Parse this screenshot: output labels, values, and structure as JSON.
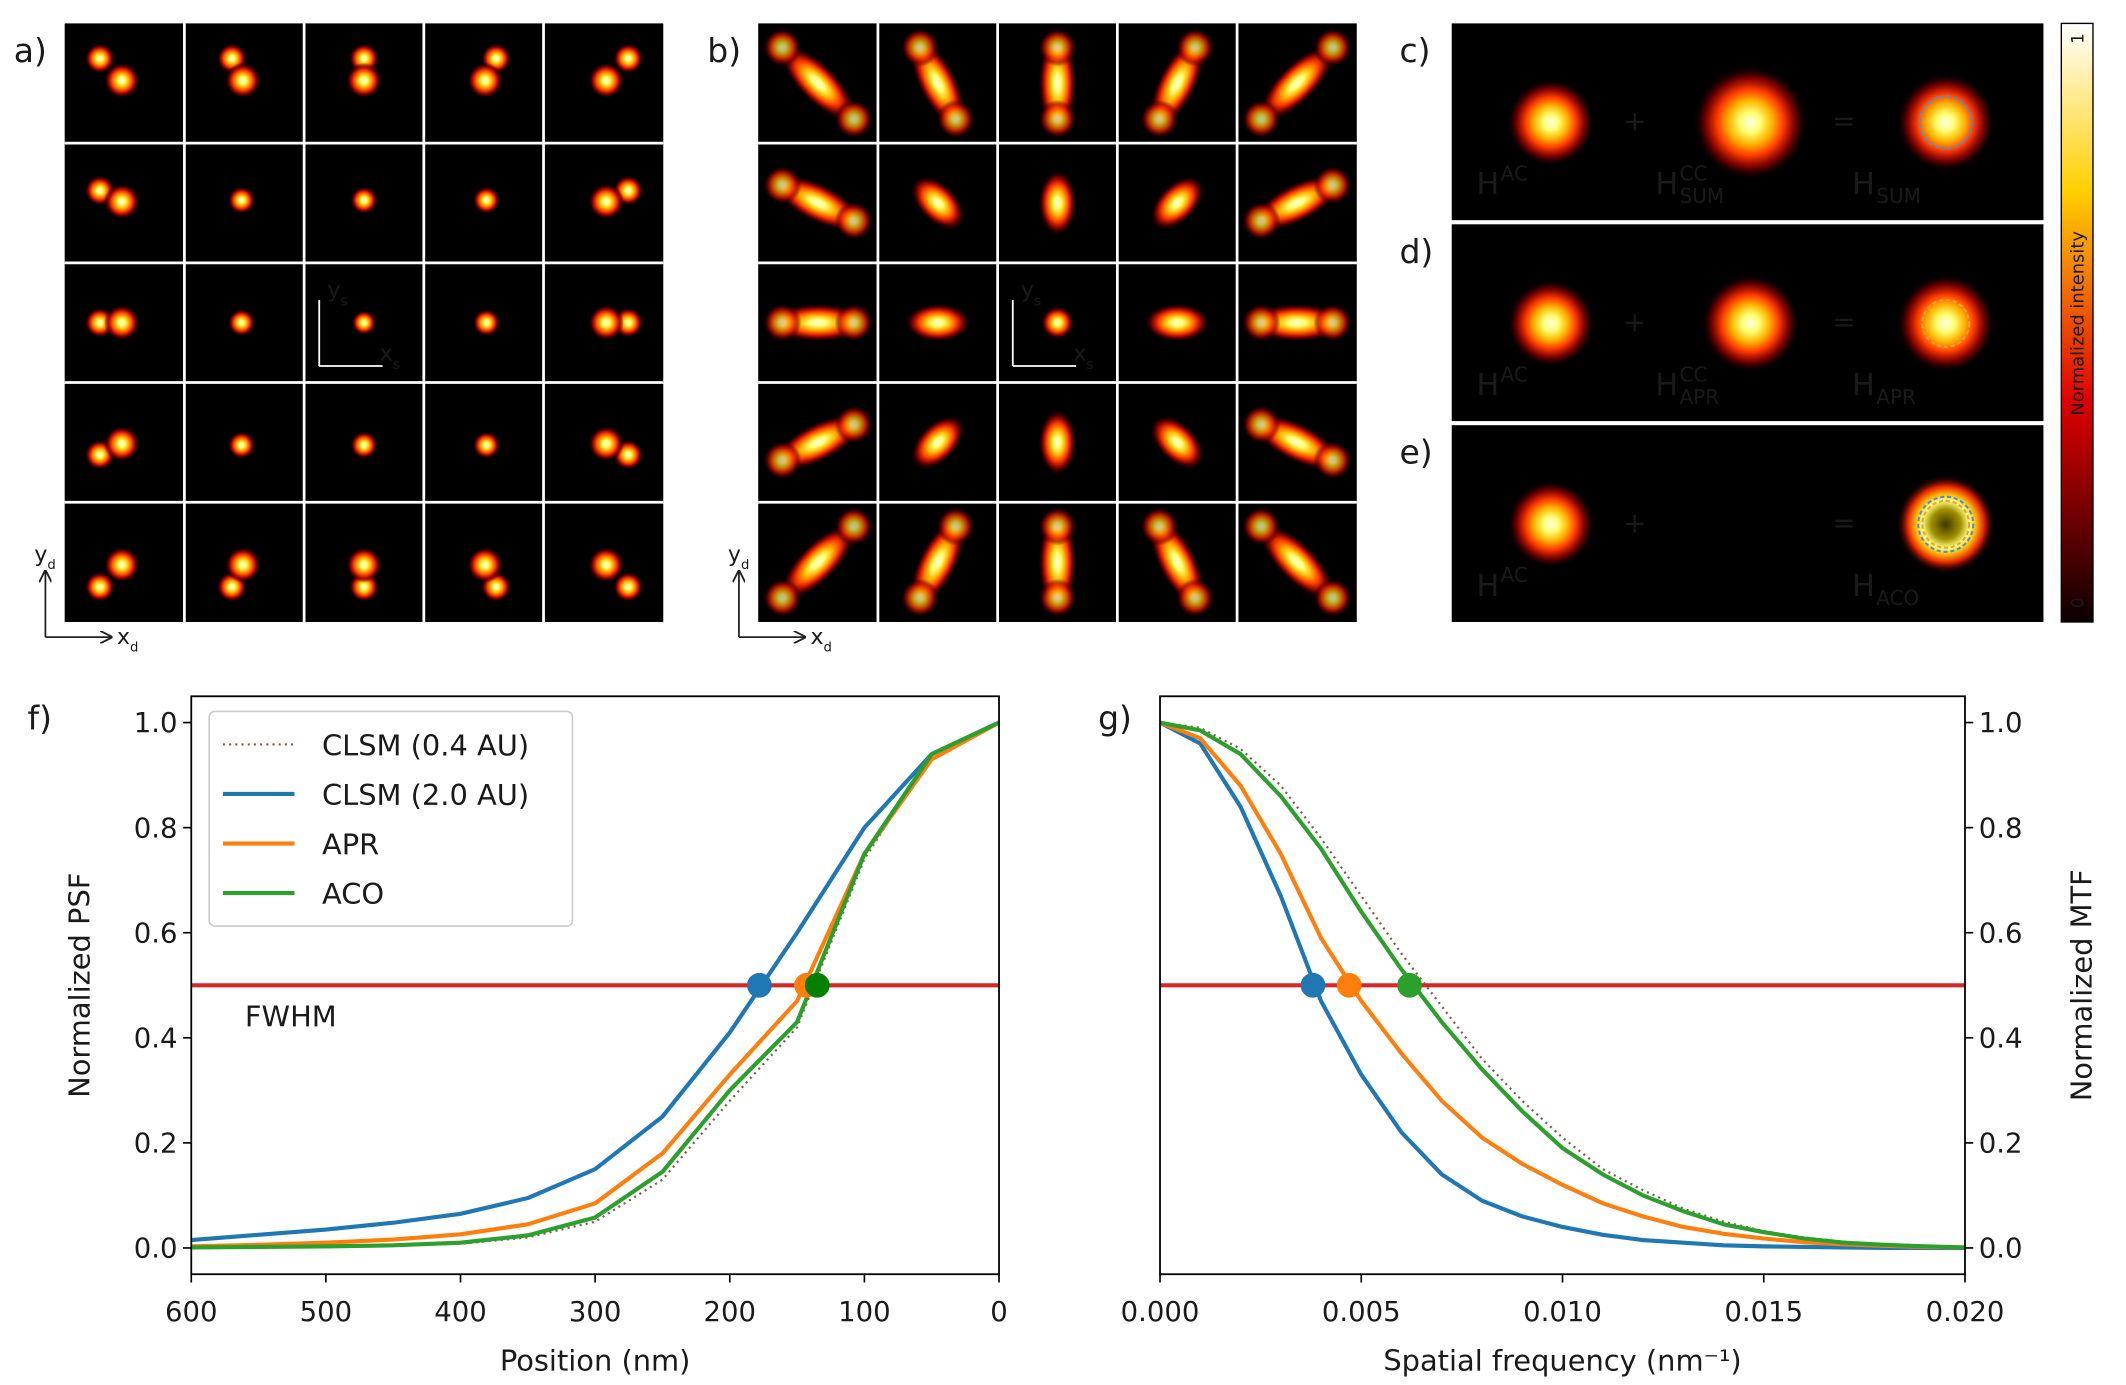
{
  "panels": {
    "a": {
      "label": "a)",
      "detector_axes": {
        "x": {
          "base": "x",
          "sub": "d"
        },
        "y": {
          "base": "y",
          "sub": "d"
        }
      },
      "scan_axes": {
        "x": {
          "base": "x",
          "sub": "s"
        },
        "y": {
          "base": "y",
          "sub": "s"
        }
      }
    },
    "b": {
      "label": "b)",
      "detector_axes": {
        "x": {
          "base": "x",
          "sub": "d"
        },
        "y": {
          "base": "y",
          "sub": "d"
        }
      },
      "scan_axes": {
        "x": {
          "base": "x",
          "sub": "s"
        },
        "y": {
          "base": "y",
          "sub": "s"
        }
      }
    },
    "c": {
      "label": "c)",
      "first": {
        "base": "H",
        "sup": "AC"
      },
      "second": {
        "base": "H",
        "sup": "CC",
        "sub": "SUM"
      },
      "result": {
        "base": "H",
        "sub": "SUM"
      },
      "plus": "+",
      "equals": "="
    },
    "d": {
      "label": "d)",
      "first": {
        "base": "H",
        "sup": "AC"
      },
      "second": {
        "base": "H",
        "sup": "CC",
        "sub": "APR"
      },
      "result": {
        "base": "H",
        "sub": "APR"
      },
      "plus": "+",
      "equals": "="
    },
    "e": {
      "label": "e)",
      "first": {
        "base": "H",
        "sup": "AC"
      },
      "result": {
        "base": "H",
        "sub": "ACO"
      },
      "plus": "+",
      "equals": "="
    },
    "colorbar": {
      "label": "Normalized intensity",
      "max_label": "1",
      "min_label": "0"
    }
  },
  "chart_data": [
    {
      "type": "line",
      "panel_label": "f)",
      "x_label": "Position (nm)",
      "y_label": "Normalized PSF",
      "x": [
        600,
        550,
        500,
        450,
        400,
        350,
        300,
        250,
        200,
        150,
        100,
        50,
        0
      ],
      "series": [
        {
          "name": "CLSM (0.4 AU)",
          "color": "#8c564b",
          "style": "dotted",
          "values": [
            0,
            0.001,
            0.002,
            0.004,
            0.008,
            0.02,
            0.05,
            0.13,
            0.28,
            0.42,
            0.74,
            0.94,
            1.0
          ]
        },
        {
          "name": "CLSM (2.0 AU)",
          "color": "#1f77b4",
          "style": "solid",
          "values": [
            0.015,
            0.025,
            0.035,
            0.048,
            0.065,
            0.095,
            0.15,
            0.25,
            0.41,
            0.6,
            0.8,
            0.94,
            1.0
          ]
        },
        {
          "name": "APR",
          "color": "#ff7f0e",
          "style": "solid",
          "values": [
            0.003,
            0.006,
            0.01,
            0.016,
            0.026,
            0.045,
            0.085,
            0.18,
            0.33,
            0.47,
            0.75,
            0.93,
            1.0
          ]
        },
        {
          "name": "ACO",
          "color": "#2ca02c",
          "style": "solid",
          "values": [
            0.001,
            0.002,
            0.003,
            0.005,
            0.01,
            0.024,
            0.058,
            0.145,
            0.3,
            0.43,
            0.75,
            0.94,
            1.0
          ]
        }
      ],
      "hline": {
        "value": 0.5,
        "color": "#d62728",
        "label": "FWHM"
      },
      "half_max_points": {
        "x": [
          178,
          143,
          135
        ],
        "y": [
          0.5,
          0.5,
          0.5
        ],
        "colors": [
          "#1f77b4",
          "#ff7f0e",
          "#008000"
        ]
      },
      "xlim": [
        600,
        0
      ],
      "ylim": [
        -0.05,
        1.05
      ],
      "xticks": [
        600,
        500,
        400,
        300,
        200,
        100,
        0
      ],
      "yticks": [
        {
          "value": 0,
          "label": "0.0"
        },
        0.2,
        0.4,
        0.6,
        0.8,
        {
          "value": 1,
          "label": "1.0"
        }
      ],
      "y_axis_side": "left",
      "legend": "upper left"
    },
    {
      "type": "line",
      "panel_label": "g)",
      "x_label": "Spatial frequency (nm⁻¹)",
      "y_label": "Normalized MTF",
      "x": [
        0,
        0.001,
        0.002,
        0.003,
        0.004,
        0.005,
        0.006,
        0.007,
        0.008,
        0.009,
        0.01,
        0.011,
        0.012,
        0.013,
        0.014,
        0.015,
        0.016,
        0.017,
        0.018,
        0.019,
        0.02
      ],
      "series": [
        {
          "color": "#8c564b",
          "style": "dotted",
          "values": [
            1,
            0.99,
            0.95,
            0.88,
            0.78,
            0.67,
            0.56,
            0.46,
            0.36,
            0.28,
            0.21,
            0.15,
            0.11,
            0.075,
            0.05,
            0.032,
            0.02,
            0.012,
            0.007,
            0.004,
            0.002
          ]
        },
        {
          "color": "#1f77b4",
          "style": "solid",
          "values": [
            1,
            0.96,
            0.84,
            0.67,
            0.47,
            0.33,
            0.22,
            0.14,
            0.09,
            0.06,
            0.04,
            0.025,
            0.015,
            0.01,
            0.005,
            0.003,
            0.002,
            0.001,
            0,
            0,
            0
          ]
        },
        {
          "color": "#ff7f0e",
          "style": "solid",
          "values": [
            1,
            0.97,
            0.88,
            0.75,
            0.59,
            0.47,
            0.37,
            0.28,
            0.21,
            0.16,
            0.12,
            0.085,
            0.06,
            0.04,
            0.027,
            0.018,
            0.011,
            0.007,
            0.004,
            0.002,
            0.001
          ]
        },
        {
          "color": "#2ca02c",
          "style": "solid",
          "values": [
            1,
            0.985,
            0.94,
            0.86,
            0.76,
            0.64,
            0.53,
            0.43,
            0.34,
            0.26,
            0.19,
            0.14,
            0.1,
            0.07,
            0.045,
            0.03,
            0.018,
            0.01,
            0.006,
            0.003,
            0.001
          ]
        }
      ],
      "hline": {
        "value": 0.5,
        "color": "#d62728"
      },
      "half_max_points": {
        "x": [
          0.0038,
          0.0047,
          0.0062
        ],
        "y": [
          0.5,
          0.5,
          0.5
        ],
        "colors": [
          "#1f77b4",
          "#ff7f0e",
          "#2ca02c"
        ]
      },
      "xlim": [
        0,
        0.02
      ],
      "ylim": [
        -0.05,
        1.05
      ],
      "xticks": [
        {
          "value": 0,
          "label": "0.000"
        },
        0.005,
        {
          "value": 0.01,
          "label": "0.010"
        },
        0.015,
        {
          "value": 0.02,
          "label": "0.020"
        }
      ],
      "yticks": [
        {
          "value": 0,
          "label": "0.0"
        },
        0.2,
        0.4,
        0.6,
        0.8,
        {
          "value": 1,
          "label": "1.0"
        }
      ],
      "y_axis_side": "right"
    }
  ]
}
